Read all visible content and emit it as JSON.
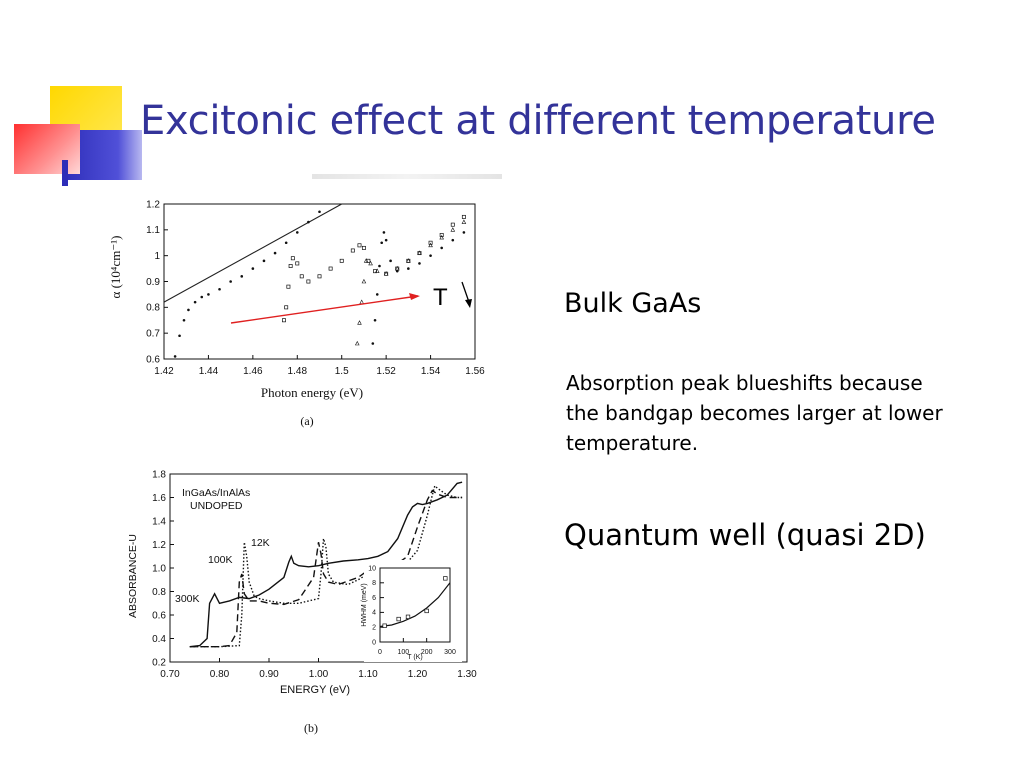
{
  "slide": {
    "title": "Excitonic effect at different temperature",
    "bulk_label": "Bulk GaAs",
    "bulk_desc": "Absorption peak blueshifts because the bandgap becomes larger at lower temperature.",
    "qw_label": "Quantum well (quasi 2D)",
    "colors": {
      "title": "#333399",
      "arrow": "#e02020",
      "deco_yellow": "#ffd800",
      "deco_red": "#ff4040",
      "deco_blue": "#3333cc"
    }
  },
  "chart_data": [
    {
      "type": "scatter",
      "panel_label": "(a)",
      "xlabel": "Photon energy (eV)",
      "ylabel": "α (10⁴cm⁻¹)",
      "xlim": [
        1.42,
        1.56
      ],
      "ylim": [
        0.6,
        1.2
      ],
      "xticks": [
        "1.42",
        "1.44",
        "1.46",
        "1.48",
        "1.5",
        "1.52",
        "1.54",
        "1.56"
      ],
      "yticks": [
        "0.6",
        "0.7",
        "0.8",
        "0.9",
        "1",
        "1.1",
        "1.2"
      ],
      "annotation": "T",
      "series": [
        {
          "marker": "dot",
          "x": [
            1.425,
            1.427,
            1.429,
            1.431,
            1.434,
            1.437,
            1.44,
            1.445,
            1.45,
            1.455,
            1.46,
            1.465,
            1.47,
            1.475,
            1.48,
            1.485,
            1.49
          ],
          "y": [
            0.61,
            0.69,
            0.75,
            0.79,
            0.82,
            0.84,
            0.85,
            0.87,
            0.9,
            0.92,
            0.95,
            0.98,
            1.01,
            1.05,
            1.09,
            1.13,
            1.17
          ]
        },
        {
          "marker": "square",
          "x": [
            1.474,
            1.475,
            1.476,
            1.477,
            1.478,
            1.48,
            1.482,
            1.485,
            1.49,
            1.495,
            1.5,
            1.505,
            1.508,
            1.51,
            1.512,
            1.515,
            1.52,
            1.525,
            1.53,
            1.535,
            1.54,
            1.545,
            1.55,
            1.555
          ],
          "y": [
            0.75,
            0.8,
            0.88,
            0.96,
            0.99,
            0.97,
            0.92,
            0.9,
            0.92,
            0.95,
            0.98,
            1.02,
            1.04,
            1.03,
            0.98,
            0.94,
            0.93,
            0.95,
            0.98,
            1.01,
            1.05,
            1.08,
            1.12,
            1.15
          ]
        },
        {
          "marker": "triangle",
          "x": [
            1.507,
            1.508,
            1.509,
            1.51,
            1.511,
            1.513,
            1.516,
            1.52,
            1.525,
            1.53,
            1.535,
            1.54,
            1.545,
            1.55,
            1.555
          ],
          "y": [
            0.66,
            0.74,
            0.82,
            0.9,
            0.98,
            0.97,
            0.94,
            0.93,
            0.95,
            0.98,
            1.01,
            1.04,
            1.07,
            1.1,
            1.13
          ]
        },
        {
          "marker": "dot",
          "x": [
            1.514,
            1.515,
            1.516,
            1.517,
            1.518,
            1.519,
            1.52,
            1.522,
            1.525,
            1.53,
            1.535,
            1.54,
            1.545,
            1.55,
            1.555
          ],
          "y": [
            0.66,
            0.75,
            0.85,
            0.96,
            1.05,
            1.09,
            1.06,
            0.98,
            0.94,
            0.95,
            0.97,
            1.0,
            1.03,
            1.06,
            1.09
          ]
        }
      ],
      "fit_line": {
        "x": [
          1.42,
          1.5
        ],
        "y": [
          0.82,
          1.2
        ]
      }
    },
    {
      "type": "line",
      "panel_label": "(b)",
      "xlabel": "ENERGY (eV)",
      "ylabel": "ABSORBANCE-U",
      "xlim": [
        0.7,
        1.3
      ],
      "ylim": [
        0.2,
        1.8
      ],
      "xticks": [
        "0.70",
        "0.80",
        "0.90",
        "1.00",
        "1.10",
        "1.20",
        "1.30"
      ],
      "yticks": [
        "0.2",
        "0.4",
        "0.6",
        "0.8",
        "1.0",
        "1.2",
        "1.4",
        "1.6",
        "1.8"
      ],
      "annotations": [
        "InGaAs/InAlAs",
        "UNDOPED"
      ],
      "series": [
        {
          "name": "300K",
          "style": "solid",
          "x": [
            0.74,
            0.76,
            0.775,
            0.78,
            0.79,
            0.8,
            0.82,
            0.84,
            0.86,
            0.88,
            0.9,
            0.93,
            0.94,
            0.945,
            0.95,
            0.96,
            0.98,
            1.0,
            1.02,
            1.05,
            1.08,
            1.1,
            1.12,
            1.14,
            1.16,
            1.18,
            1.19,
            1.2,
            1.21,
            1.22,
            1.24,
            1.26,
            1.28,
            1.29
          ],
          "y": [
            0.33,
            0.34,
            0.4,
            0.7,
            0.78,
            0.7,
            0.72,
            0.75,
            0.74,
            0.77,
            0.82,
            0.92,
            1.05,
            1.1,
            1.04,
            1.02,
            1.01,
            1.02,
            1.04,
            1.06,
            1.07,
            1.08,
            1.1,
            1.14,
            1.25,
            1.45,
            1.52,
            1.55,
            1.54,
            1.55,
            1.58,
            1.62,
            1.72,
            1.73
          ]
        },
        {
          "name": "100K",
          "style": "dashed",
          "x": [
            0.74,
            0.8,
            0.82,
            0.835,
            0.84,
            0.845,
            0.85,
            0.86,
            0.88,
            0.9,
            0.93,
            0.96,
            0.99,
            1.0,
            1.005,
            1.01,
            1.02,
            1.04,
            1.08,
            1.1,
            1.12,
            1.14,
            1.16,
            1.18,
            1.2,
            1.22,
            1.23,
            1.24,
            1.26,
            1.28,
            1.29
          ],
          "y": [
            0.33,
            0.33,
            0.34,
            0.45,
            0.88,
            0.95,
            0.78,
            0.72,
            0.72,
            0.7,
            0.69,
            0.73,
            0.92,
            1.22,
            1.12,
            0.95,
            0.88,
            0.86,
            0.92,
            0.98,
            1.02,
            1.02,
            1.04,
            1.1,
            1.35,
            1.58,
            1.66,
            1.63,
            1.6,
            1.6,
            1.6
          ]
        },
        {
          "name": "12K",
          "style": "dotted",
          "x": [
            0.74,
            0.8,
            0.84,
            0.845,
            0.85,
            0.855,
            0.86,
            0.87,
            0.88,
            0.9,
            0.93,
            0.96,
            1.0,
            1.005,
            1.01,
            1.015,
            1.02,
            1.03,
            1.06,
            1.08,
            1.1,
            1.12,
            1.14,
            1.16,
            1.18,
            1.2,
            1.22,
            1.23,
            1.235,
            1.24,
            1.26,
            1.28,
            1.29
          ],
          "y": [
            0.33,
            0.33,
            0.34,
            0.6,
            1.22,
            1.1,
            0.88,
            0.76,
            0.74,
            0.72,
            0.7,
            0.7,
            0.74,
            0.95,
            1.25,
            1.18,
            0.95,
            0.88,
            0.86,
            0.9,
            0.95,
            0.98,
            1.0,
            1.02,
            1.05,
            1.15,
            1.45,
            1.62,
            1.7,
            1.68,
            1.62,
            1.6,
            1.6
          ]
        }
      ],
      "inset": {
        "xlabel": "T (K)",
        "ylabel": "HWHM (meV)",
        "xlim": [
          0,
          300
        ],
        "ylim": [
          0,
          10
        ],
        "xticks": [
          "0",
          "100",
          "200",
          "300"
        ],
        "yticks": [
          "0",
          "2",
          "4",
          "6",
          "8",
          "10"
        ],
        "points": {
          "x": [
            20,
            80,
            120,
            200,
            280
          ],
          "y": [
            2.2,
            3.1,
            3.4,
            4.2,
            8.6
          ]
        },
        "fit": {
          "x": [
            0,
            50,
            100,
            150,
            200,
            250,
            300
          ],
          "y": [
            2.1,
            2.3,
            2.8,
            3.5,
            4.6,
            6.0,
            8.0
          ]
        }
      }
    }
  ]
}
